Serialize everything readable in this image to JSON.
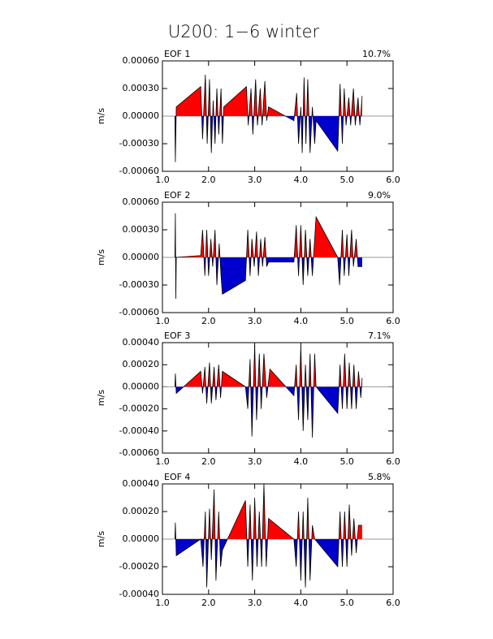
{
  "title": "U200: 1−6 winter",
  "chart_data": [
    {
      "type": "area",
      "title": "EOF 1",
      "annotation": "10.7%",
      "y_label": "m/s",
      "positive_color": "#ff0000",
      "negative_color": "#0000cc",
      "xlim": [
        1,
        6
      ],
      "xticks": [
        {
          "value": 1,
          "label": "1.0"
        },
        {
          "value": 2,
          "label": "2.0"
        },
        {
          "value": 3,
          "label": "3.0"
        },
        {
          "value": 4,
          "label": "4.0"
        },
        {
          "value": 5,
          "label": "5.0"
        },
        {
          "value": 6,
          "label": "6.0"
        }
      ],
      "ylim": [
        -0.0006,
        0.0006
      ],
      "yticks": [
        {
          "value": -0.0006,
          "label": "-0.00060"
        },
        {
          "value": -0.0003,
          "label": "-0.00030"
        },
        {
          "value": 0,
          "label": "0.00000"
        },
        {
          "value": 0.0003,
          "label": "0.00030"
        },
        {
          "value": 0.0006,
          "label": "0.00060"
        }
      ],
      "x": [
        1.27,
        1.28,
        1.3,
        1.83,
        1.87,
        1.93,
        1.97,
        2.02,
        2.06,
        2.1,
        2.14,
        2.18,
        2.22,
        2.27,
        2.3,
        2.33,
        2.82,
        2.86,
        2.92,
        2.96,
        3.02,
        3.06,
        3.12,
        3.16,
        3.22,
        3.26,
        3.3,
        3.85,
        3.91,
        3.95,
        4.0,
        4.03,
        4.07,
        4.11,
        4.15,
        4.2,
        4.25,
        4.3,
        4.33,
        4.8,
        4.85,
        4.9,
        4.94,
        4.98,
        5.04,
        5.08,
        5.14,
        5.18,
        5.24,
        5.28,
        5.33
      ],
      "values": [
        0,
        -0.0005,
        0.0001,
        0.00032,
        -0.00025,
        0.00045,
        -0.0003,
        0.0004,
        -0.0004,
        0.00017,
        -0.0003,
        0.0003,
        -0.0002,
        0.0003,
        -0.0003,
        0.0001,
        0.00032,
        -0.0001,
        0.0003,
        -0.0002,
        0.0004,
        -0.0001,
        0.0003,
        -0.0001,
        0.00038,
        -5e-05,
        0.0001,
        -5e-05,
        0.00025,
        -0.0003,
        0.0001,
        -0.0004,
        0.00042,
        -0.0003,
        0.0004,
        -0.0004,
        0.0001,
        -0.0003,
        -5e-05,
        -0.00038,
        0.00035,
        -0.0003,
        0.0003,
        -0.0001,
        0.0002,
        -0.0001,
        0.0003,
        -0.0001,
        0.0002,
        -0.0001,
        0.00022
      ]
    },
    {
      "type": "area",
      "title": "EOF 2",
      "annotation": "9.0%",
      "y_label": "m/s",
      "positive_color": "#ff0000",
      "negative_color": "#0000cc",
      "xlim": [
        1,
        6
      ],
      "xticks": [
        {
          "value": 1,
          "label": "1.0"
        },
        {
          "value": 2,
          "label": "2.0"
        },
        {
          "value": 3,
          "label": "3.0"
        },
        {
          "value": 4,
          "label": "4.0"
        },
        {
          "value": 5,
          "label": "5.0"
        },
        {
          "value": 6,
          "label": "6.0"
        }
      ],
      "ylim": [
        -0.0006,
        0.0006
      ],
      "yticks": [
        {
          "value": -0.0006,
          "label": "-0.00060"
        },
        {
          "value": -0.0003,
          "label": "-0.00030"
        },
        {
          "value": 0,
          "label": "0.00000"
        },
        {
          "value": 0.0003,
          "label": "0.00030"
        },
        {
          "value": 0.0006,
          "label": "0.00060"
        }
      ],
      "x": [
        1.27,
        1.28,
        1.29,
        1.3,
        1.83,
        1.87,
        1.92,
        1.96,
        2.0,
        2.05,
        2.09,
        2.14,
        2.18,
        2.23,
        2.27,
        2.3,
        2.8,
        2.85,
        2.9,
        2.94,
        2.99,
        3.04,
        3.08,
        3.13,
        3.17,
        3.22,
        3.26,
        3.3,
        3.85,
        3.9,
        3.95,
        4.0,
        4.05,
        4.1,
        4.15,
        4.2,
        4.25,
        4.33,
        4.8,
        4.84,
        4.9,
        4.94,
        5.0,
        5.04,
        5.1,
        5.14,
        5.2,
        5.24,
        5.33
      ],
      "values": [
        0,
        0.00048,
        -0.00045,
        0,
        2e-05,
        0.0003,
        -0.0002,
        0.0003,
        -0.0002,
        0.0002,
        -0.0001,
        0.0003,
        -0.0003,
        0.00015,
        -0.0002,
        -0.0004,
        -0.00025,
        0.0003,
        -0.0002,
        0.0002,
        -0.0001,
        0.00028,
        -0.0002,
        0.0002,
        -0.0001,
        0.00022,
        -0.0001,
        -5e-05,
        -5e-05,
        0.00035,
        -0.0002,
        0.00035,
        -0.0003,
        0.0003,
        -0.0002,
        0.0002,
        -0.0002,
        0.00044,
        0,
        -0.0003,
        0.0003,
        -0.0002,
        0.00025,
        -0.0002,
        0.0003,
        -0.0001,
        0.0002,
        -0.0001,
        -0.0001
      ]
    },
    {
      "type": "area",
      "title": "EOF 3",
      "annotation": "7.1%",
      "y_label": "m/s",
      "positive_color": "#ff0000",
      "negative_color": "#0000cc",
      "xlim": [
        1,
        6
      ],
      "xticks": [
        {
          "value": 1,
          "label": "1.0"
        },
        {
          "value": 2,
          "label": "2.0"
        },
        {
          "value": 3,
          "label": "3.0"
        },
        {
          "value": 4,
          "label": "4.0"
        },
        {
          "value": 5,
          "label": "5.0"
        },
        {
          "value": 6,
          "label": "6.0"
        }
      ],
      "ylim": [
        -0.0006,
        0.0004
      ],
      "yticks": [
        {
          "value": -0.0006,
          "label": "-0.00060"
        },
        {
          "value": -0.0004,
          "label": "-0.00040"
        },
        {
          "value": -0.0002,
          "label": "-0.00020"
        },
        {
          "value": 0,
          "label": "0.00000"
        },
        {
          "value": 0.0002,
          "label": "0.00020"
        },
        {
          "value": 0.0004,
          "label": "0.00040"
        }
      ],
      "x": [
        1.27,
        1.28,
        1.3,
        1.83,
        1.87,
        1.92,
        1.96,
        2.02,
        2.06,
        2.12,
        2.16,
        2.22,
        2.26,
        2.3,
        2.8,
        2.85,
        2.9,
        2.94,
        3.0,
        3.04,
        3.1,
        3.14,
        3.2,
        3.26,
        3.33,
        3.85,
        3.9,
        3.95,
        4.0,
        4.05,
        4.1,
        4.15,
        4.2,
        4.25,
        4.3,
        4.33,
        4.8,
        4.85,
        4.9,
        4.95,
        5.0,
        5.05,
        5.1,
        5.15,
        5.2,
        5.25,
        5.3,
        5.33
      ],
      "values": [
        0,
        0.00012,
        -6e-05,
        0.00014,
        -6e-05,
        0.00018,
        -0.00015,
        0.00022,
        -0.00015,
        0.00018,
        -0.00012,
        0.0002,
        -0.0001,
        0.00014,
        0,
        -0.0002,
        0.00025,
        -0.00045,
        0.00038,
        -0.0003,
        0.0003,
        -0.0002,
        0.0003,
        -0.0001,
        0.00016,
        -8e-05,
        0.0002,
        -0.0003,
        0.00037,
        -0.0004,
        0.0002,
        -0.0003,
        0.0003,
        -0.00046,
        0.0003,
        0,
        -0.00024,
        0.0002,
        -0.0002,
        0.0003,
        -0.0002,
        0.00022,
        -0.0002,
        0.0002,
        -0.0002,
        0.00014,
        -0.0001,
        8e-05
      ]
    },
    {
      "type": "area",
      "title": "EOF 4",
      "annotation": "5.8%",
      "y_label": "m/s",
      "positive_color": "#ff0000",
      "negative_color": "#0000cc",
      "xlim": [
        1,
        6
      ],
      "xticks": [
        {
          "value": 1,
          "label": "1.0"
        },
        {
          "value": 2,
          "label": "2.0"
        },
        {
          "value": 3,
          "label": "3.0"
        },
        {
          "value": 4,
          "label": "4.0"
        },
        {
          "value": 5,
          "label": "5.0"
        },
        {
          "value": 6,
          "label": "6.0"
        }
      ],
      "ylim": [
        -0.0004,
        0.0004
      ],
      "yticks": [
        {
          "value": -0.0004,
          "label": "-0.00040"
        },
        {
          "value": -0.0002,
          "label": "-0.00020"
        },
        {
          "value": 0,
          "label": "0.00000"
        },
        {
          "value": 0.0002,
          "label": "0.00020"
        },
        {
          "value": 0.0004,
          "label": "0.00040"
        }
      ],
      "x": [
        1.27,
        1.28,
        1.3,
        1.83,
        1.88,
        1.93,
        1.96,
        2.02,
        2.06,
        2.12,
        2.16,
        2.22,
        2.26,
        2.3,
        2.8,
        2.85,
        2.9,
        2.95,
        3.0,
        3.05,
        3.1,
        3.15,
        3.2,
        3.25,
        3.3,
        3.85,
        3.9,
        3.95,
        4.0,
        4.05,
        4.1,
        4.15,
        4.2,
        4.25,
        4.3,
        4.8,
        4.85,
        4.9,
        4.95,
        5.0,
        5.05,
        5.1,
        5.15,
        5.2,
        5.25,
        5.33
      ],
      "values": [
        0,
        0.00012,
        -0.00012,
        0,
        -0.0002,
        0.0002,
        -0.00035,
        0.00022,
        -0.00015,
        0.00036,
        -0.0003,
        0.0002,
        -0.0002,
        -8e-05,
        0.00028,
        -0.0002,
        0.00025,
        -0.0003,
        0.0003,
        -0.0002,
        0.0002,
        -0.0002,
        0.0004,
        -0.0002,
        0.00015,
        0,
        -0.0002,
        0.0002,
        -0.0003,
        0.0002,
        -0.00035,
        0.0003,
        -0.0003,
        0.0001,
        0,
        -0.0002,
        0.0002,
        -0.0002,
        0.0002,
        -0.0002,
        0.00025,
        -0.00012,
        0.00015,
        -0.0001,
        0.0001,
        0.0001
      ]
    }
  ]
}
